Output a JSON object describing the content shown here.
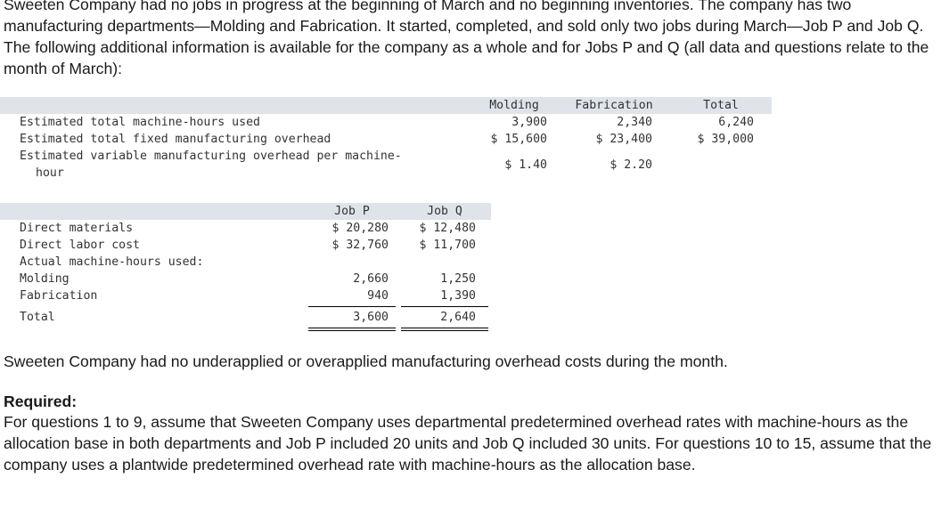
{
  "intro": "Sweeten Company had no jobs in progress at the beginning of March and no beginning inventories. The company has two manufacturing departments—Molding and Fabrication. It started, completed, and sold only two jobs during March—Job P and Job Q. The following additional information is available for the company as a whole and for Jobs P and Q (all data and questions relate to the month of March):",
  "company_table": {
    "headers": {
      "molding": "Molding",
      "fabrication": "Fabrication",
      "total": "Total"
    },
    "rows": [
      {
        "label": "Estimated total machine-hours used",
        "molding": "3,900",
        "fabrication": "2,340",
        "total": "6,240"
      },
      {
        "label": "Estimated total fixed manufacturing overhead",
        "molding": "$ 15,600",
        "fabrication": "$ 23,400",
        "total": "$ 39,000"
      },
      {
        "label_line1": "Estimated variable manufacturing overhead per machine-",
        "label_line2": "hour",
        "molding": "$ 1.40",
        "fabrication": "$ 2.20"
      }
    ]
  },
  "job_table": {
    "headers": {
      "job_p": "Job P",
      "job_q": "Job Q"
    },
    "rows": [
      {
        "label": "Direct materials",
        "job_p": "$ 20,280",
        "job_q": "$ 12,480"
      },
      {
        "label": "Direct labor cost",
        "job_p": "$ 32,760",
        "job_q": "$ 11,700"
      },
      {
        "label": "Actual machine-hours used:"
      },
      {
        "label": "Molding",
        "job_p": "2,660",
        "job_q": "1,250"
      },
      {
        "label": "Fabrication",
        "job_p": "940",
        "job_q": "1,390"
      },
      {
        "label": "Total",
        "job_p": "3,600",
        "job_q": "2,640"
      }
    ]
  },
  "note": "Sweeten Company had no underapplied or overapplied manufacturing overhead costs during the month.",
  "required_heading": "Required:",
  "required_text": "For questions 1 to 9, assume that Sweeten Company uses departmental predetermined overhead rates with machine-hours as the allocation base in both departments and Job P included 20 units and Job Q included 30 units. For questions 10 to 15, assume that the company uses a plantwide predetermined overhead rate with machine-hours as the allocation base."
}
